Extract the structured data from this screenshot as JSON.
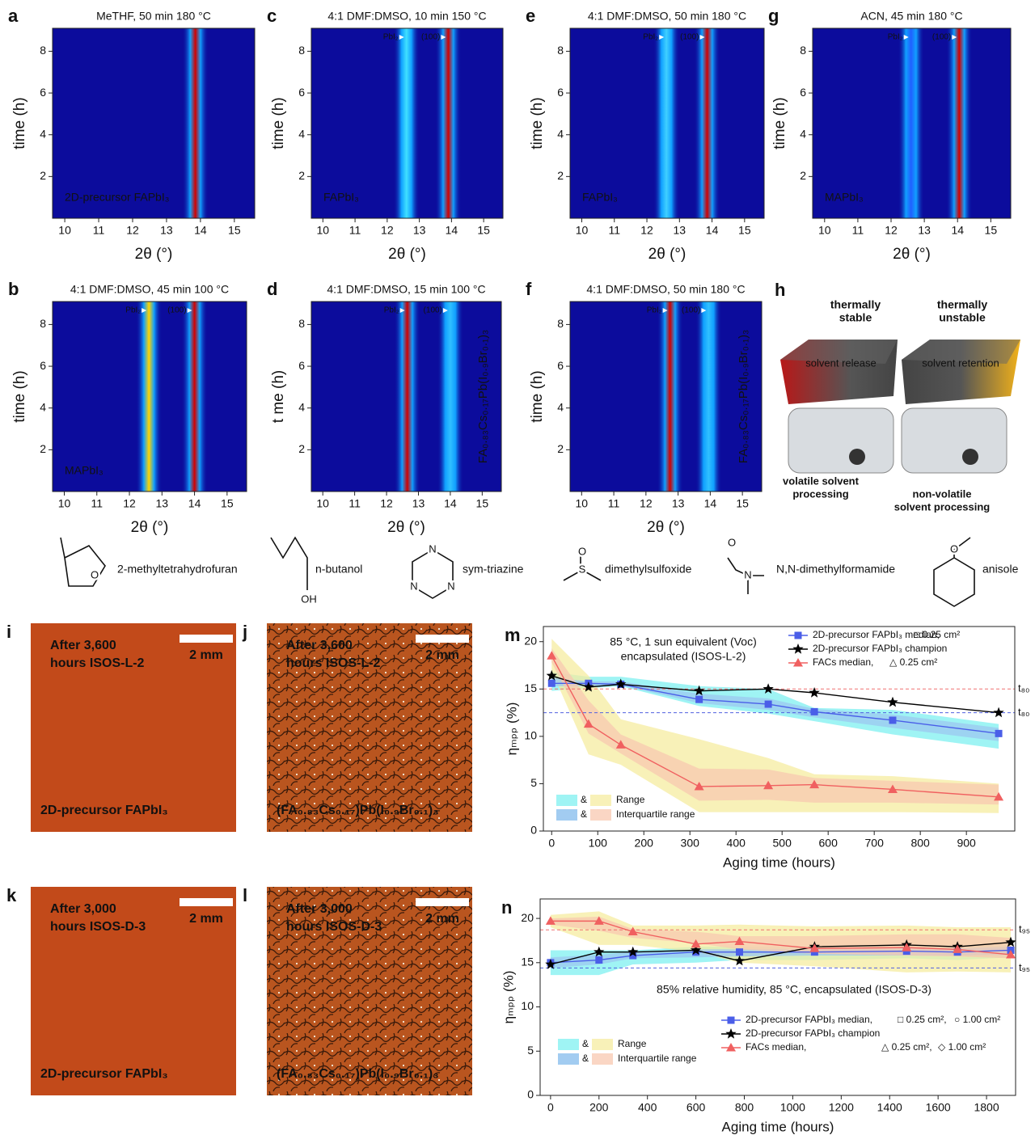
{
  "heatmaps": [
    {
      "label": "a",
      "title": "MeTHF, 50 min 180 °C",
      "xlabel": "2θ (°)",
      "ylabel": "time (h)",
      "xlim": [
        9.64,
        15.6
      ],
      "xticks": [
        10,
        11,
        12,
        13,
        14,
        15
      ],
      "ylim": [
        0,
        9.1
      ],
      "yticks": [
        2,
        4,
        6,
        8
      ],
      "sample": "2D-precursor FAPbI₃",
      "peaks": [
        {
          "x": 13.85,
          "color": "#d00000"
        }
      ]
    },
    {
      "label": "b",
      "title": "4:1 DMF:DMSO, 45 min 100 °C",
      "xlabel": "2θ (°)",
      "ylabel": "time (h)",
      "xlim": [
        9.64,
        15.6
      ],
      "xticks": [
        10,
        11,
        12,
        13,
        14,
        15
      ],
      "ylim": [
        0,
        9.1
      ],
      "yticks": [
        2,
        4,
        6,
        8
      ],
      "sample": "MAPbI₃",
      "peaks": [
        {
          "x": 12.6,
          "color": "#ffd400",
          "label": "PbI₂"
        },
        {
          "x": 14.0,
          "color": "#d00000",
          "label": "(100)"
        }
      ]
    },
    {
      "label": "c",
      "title": "4:1 DMF:DMSO, 10 min 150 °C",
      "xlabel": "2θ (°)",
      "ylabel": "time (h)",
      "xlim": [
        9.64,
        15.6
      ],
      "xticks": [
        10,
        11,
        12,
        13,
        14,
        15
      ],
      "ylim": [
        0,
        9.1
      ],
      "yticks": [
        2,
        4,
        6,
        8
      ],
      "sample": "FAPbI₃",
      "peaks": [
        {
          "x": 12.6,
          "color": "#40e0ff",
          "label": "PbI₂"
        },
        {
          "x": 13.9,
          "color": "#d00000",
          "label": "(100)"
        }
      ]
    },
    {
      "label": "d",
      "title": "4:1 DMF:DMSO, 15 min 100 °C",
      "xlabel": "2θ (°)",
      "ylabel": "t me (h)",
      "xlim": [
        9.64,
        15.6
      ],
      "xticks": [
        10,
        11,
        12,
        13,
        14,
        15
      ],
      "ylim": [
        0,
        9.1
      ],
      "yticks": [
        2,
        4,
        6,
        8
      ],
      "side_label": "FA₀.₈₃Cs₀.₁₇Pb(I₀.₉Br₀.₁)₃",
      "peaks": [
        {
          "x": 12.65,
          "color": "#d00000",
          "label": "PbI₂"
        },
        {
          "x": 14.0,
          "color": "#30c0ff",
          "label": "(100)"
        }
      ]
    },
    {
      "label": "e",
      "title": "4:1 DMF:DMSO, 50 min 180 °C",
      "xlabel": "2θ (°)",
      "ylabel": "time (h)",
      "xlim": [
        9.64,
        15.6
      ],
      "xticks": [
        10,
        11,
        12,
        13,
        14,
        15
      ],
      "ylim": [
        0,
        9.1
      ],
      "yticks": [
        2,
        4,
        6,
        8
      ],
      "sample": "FAPbI₃",
      "peaks": [
        {
          "x": 12.6,
          "color": "#40d0ff",
          "label": "PbI₂"
        },
        {
          "x": 13.85,
          "color": "#d00000",
          "label": "(100)"
        }
      ]
    },
    {
      "label": "f",
      "title": "4:1 DMF:DMSO, 50 min 180 °C",
      "xlabel": "2θ (°)",
      "ylabel": "time (h)",
      "xlim": [
        9.64,
        15.6
      ],
      "xticks": [
        10,
        11,
        12,
        13,
        14,
        15
      ],
      "ylim": [
        0,
        9.1
      ],
      "yticks": [
        2,
        4,
        6,
        8
      ],
      "side_label": "FA₀.₈₃Cs₀.₁₇Pb(I₀.₉Br₀.₁)₃",
      "peaks": [
        {
          "x": 12.75,
          "color": "#d00000",
          "label": "PbI₂"
        },
        {
          "x": 13.95,
          "color": "#30c0ff",
          "label": "(100)"
        }
      ]
    },
    {
      "label": "g",
      "title": "ACN, 45 min 180 °C",
      "xlabel": "2θ (°)",
      "ylabel": "time (h)",
      "xlim": [
        9.64,
        15.6
      ],
      "xticks": [
        10,
        11,
        12,
        13,
        14,
        15
      ],
      "ylim": [
        0,
        9.1
      ],
      "yticks": [
        2,
        4,
        6,
        8
      ],
      "sample": "MAPbI₃",
      "peaks": [
        {
          "x": 12.6,
          "color": "#2060ff",
          "label": "PbI₂"
        },
        {
          "x": 14.05,
          "color": "#d00000",
          "label": "(100)"
        }
      ]
    }
  ],
  "schematic": {
    "label": "h",
    "left_note": [
      "thermally",
      "stable"
    ],
    "right_note": [
      "thermally",
      "unstable"
    ],
    "left_box": "solvent release",
    "right_box": "solvent retention",
    "left_caption": [
      "volatile solvent",
      "processing"
    ],
    "right_caption": [
      "non-volatile",
      "solvent processing"
    ]
  },
  "molecules": [
    {
      "name": "2-methyltetrahydrofuran",
      "atoms": [
        "O"
      ]
    },
    {
      "name": "n-butanol",
      "atoms": [
        "OH"
      ]
    },
    {
      "name": "sym-triazine",
      "atoms": [
        "N",
        "N",
        "N"
      ]
    },
    {
      "name": "dimethylsulfoxide",
      "atoms": [
        "O",
        "S"
      ]
    },
    {
      "name": "N,N-dimethylformamide",
      "atoms": [
        "O",
        "N"
      ]
    },
    {
      "name": "anisole",
      "atoms": [
        "O"
      ]
    }
  ],
  "micrographs": [
    {
      "label": "i",
      "caption_top": [
        "After 3,600",
        "hours ISOS-L-2"
      ],
      "scale": "2 mm",
      "caption_bottom": "2D-precursor FAPbI₃"
    },
    {
      "label": "j",
      "caption_top": [
        "After 3,600",
        "hours ISOS-L-2"
      ],
      "scale": "2 mm",
      "caption_bottom": "(FA₀.₈₃Cs₀.₁₇)Pb(I₀.₉Br₀.₁)₃"
    },
    {
      "label": "k",
      "caption_top": [
        "After 3,000",
        "hours ISOS-D-3"
      ],
      "scale": "2 mm",
      "caption_bottom": "2D-precursor FAPbI₃"
    },
    {
      "label": "l",
      "caption_top": [
        "After 3,000",
        "hours ISOS-D-3"
      ],
      "scale": "2 mm",
      "caption_bottom": "(FA₀.₈₃Cs₀.₁₇)Pb(I₀.₉Br₀.₁)₃"
    }
  ],
  "chart_data": [
    {
      "type": "line",
      "label": "m",
      "annotation": [
        "85 °C, 1 sun equivalent (Voc)",
        "encapsulated (ISOS-L-2)"
      ],
      "xlabel": "Aging time (hours)",
      "ylabel": "ηₘₚₚ (%)",
      "xlim": [
        -18,
        1005
      ],
      "xticks": [
        0,
        100,
        200,
        300,
        400,
        500,
        600,
        700,
        800,
        900
      ],
      "ylim": [
        0,
        21.6
      ],
      "yticks": [
        0,
        5,
        10,
        15,
        20
      ],
      "x": [
        0,
        80,
        150,
        320,
        470,
        570,
        740,
        970
      ],
      "band_legend": {
        "amp": "&",
        "range": "Range",
        "iqr": "Interquartile range"
      },
      "thresholds": [
        {
          "value": 15,
          "label": "t₈₀",
          "color": "#f07070"
        },
        {
          "value": 12.5,
          "label": "t₈₀",
          "color": "#5060e0"
        }
      ],
      "series": [
        {
          "name": "2D-precursor FAPbI₃ median,",
          "color": "#4a5ee8",
          "marker": "square",
          "notes": [
            "□ 0.25 cm²"
          ],
          "values": [
            15.6,
            15.6,
            15.5,
            13.9,
            13.4,
            12.6,
            11.7,
            10.3
          ],
          "range_low": [
            14.8,
            15.1,
            15.3,
            13.2,
            12.4,
            11.6,
            10.2,
            8.7
          ],
          "range_high": [
            16.8,
            16.3,
            16.3,
            15.3,
            15.0,
            13.0,
            12.8,
            11.3
          ],
          "iqr_low": [
            15.3,
            15.3,
            15.4,
            13.5,
            12.8,
            12.0,
            10.9,
            9.5
          ],
          "iqr_high": [
            16.2,
            15.8,
            15.8,
            14.5,
            14.0,
            12.9,
            12.3,
            10.9
          ],
          "range_color": "#7ff0f0",
          "iqr_color": "#9cc8f0"
        },
        {
          "name": "2D-precursor FAPbI₃ champion",
          "color": "#000000",
          "marker": "star",
          "values": [
            16.4,
            15.2,
            15.5,
            14.8,
            15.0,
            14.6,
            13.6,
            12.5
          ]
        },
        {
          "name": "FACs median,",
          "color": "#f06060",
          "marker": "triangle",
          "notes": [
            "△ 0.25 cm²"
          ],
          "values": [
            18.5,
            11.3,
            9.1,
            4.7,
            4.8,
            4.9,
            4.4,
            3.6
          ],
          "range_low": [
            16.9,
            8.1,
            7.0,
            2.0,
            2.0,
            2.0,
            2.0,
            1.9
          ],
          "range_high": [
            20.3,
            16.4,
            11.8,
            9.7,
            7.7,
            6.0,
            5.8,
            5.0
          ],
          "iqr_low": [
            17.8,
            10.3,
            8.2,
            3.2,
            3.3,
            3.0,
            3.0,
            2.8
          ],
          "iqr_high": [
            19.3,
            13.8,
            10.2,
            6.6,
            6.5,
            5.6,
            5.3,
            4.9
          ],
          "range_color": "#f5eca0",
          "iqr_color": "#f8c8b0"
        }
      ]
    },
    {
      "type": "line",
      "label": "n",
      "annotation": [
        "85% relative humidity, 85 °C, encapsulated (ISOS-D-3)"
      ],
      "xlabel": "Aging time (hours)",
      "ylabel": "ηₘₚₚ (%)",
      "xlim": [
        -43,
        1920
      ],
      "xticks": [
        0,
        200,
        400,
        600,
        800,
        1000,
        1200,
        1400,
        1600,
        1800
      ],
      "ylim": [
        0,
        22.2
      ],
      "yticks": [
        0,
        5,
        10,
        15,
        20
      ],
      "x": [
        0,
        200,
        340,
        600,
        780,
        1090,
        1470,
        1680,
        1900
      ],
      "band_legend": {
        "amp": "&",
        "range": "Range",
        "iqr": "Interquartile range"
      },
      "thresholds": [
        {
          "value": 18.7,
          "label": "t₉₅",
          "color": "#f07070"
        },
        {
          "value": 14.4,
          "label": "t₉₅",
          "color": "#5060e0"
        }
      ],
      "series": [
        {
          "name": "2D-precursor FAPbI₃ median,",
          "color": "#4a5ee8",
          "marker": "square",
          "notes": [
            "□ 0.25 cm²,",
            "○ 1.00 cm²"
          ],
          "values": [
            15.0,
            15.3,
            15.8,
            16.2,
            16.2,
            16.2,
            16.3,
            16.2,
            16.4
          ],
          "range_low": [
            13.6,
            13.6,
            14.8,
            15.0,
            15.3,
            15.3,
            15.5,
            15.3,
            15.6
          ],
          "range_high": [
            16.4,
            16.4,
            16.4,
            16.8,
            16.8,
            16.8,
            16.8,
            16.8,
            17.0
          ],
          "iqr_low": [
            14.4,
            14.8,
            15.5,
            15.6,
            15.7,
            15.8,
            15.8,
            15.8,
            15.9
          ],
          "iqr_high": [
            15.6,
            15.9,
            16.2,
            16.5,
            16.5,
            16.5,
            16.6,
            16.6,
            16.8
          ],
          "range_color": "#7ff0f0",
          "iqr_color": "#9cc8f0"
        },
        {
          "name": "2D-precursor FAPbI₃ champion",
          "color": "#000000",
          "marker": "star",
          "values": [
            14.8,
            16.2,
            16.2,
            16.4,
            15.2,
            16.8,
            17.0,
            16.8,
            17.3
          ]
        },
        {
          "name": "FACs median,",
          "color": "#f06060",
          "marker": "triangle",
          "notes": [
            "△ 0.25 cm²,",
            "◇ 1.00 cm²"
          ],
          "values": [
            19.7,
            19.7,
            18.5,
            17.1,
            17.4,
            16.6,
            16.7,
            16.5,
            15.9
          ],
          "range_low": [
            19.0,
            17.0,
            17.0,
            16.2,
            15.0,
            14.6,
            13.9,
            14.0,
            13.9
          ],
          "range_high": [
            20.4,
            20.8,
            19.2,
            19.2,
            19.3,
            19.1,
            19.2,
            19.0,
            19.0
          ],
          "iqr_low": [
            19.3,
            18.6,
            17.8,
            17.2,
            16.5,
            16.0,
            15.8,
            15.7,
            15.5
          ],
          "iqr_high": [
            20.0,
            20.2,
            18.8,
            18.5,
            18.0,
            18.0,
            18.2,
            18.2,
            17.8
          ],
          "range_color": "#f5eca0",
          "iqr_color": "#f8c8b0"
        }
      ]
    }
  ]
}
